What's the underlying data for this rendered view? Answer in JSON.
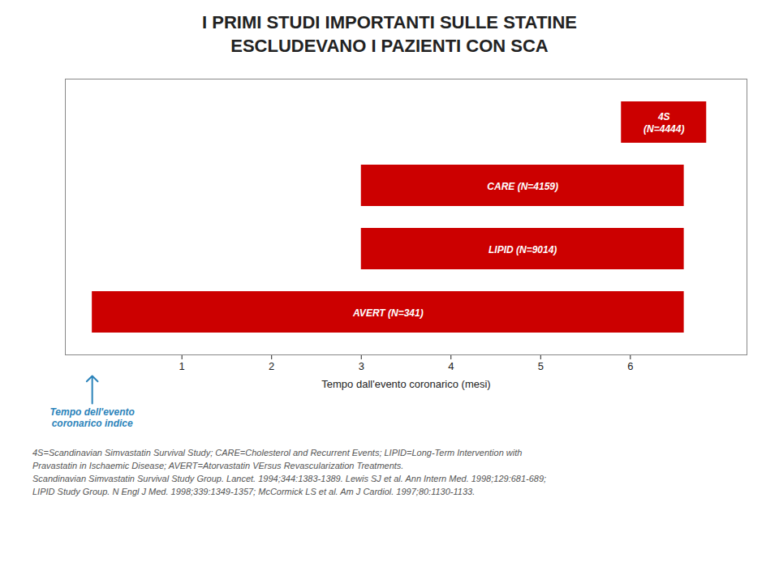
{
  "chart_data": {
    "type": "bar",
    "orientation": "horizontal",
    "title": "I PRIMI STUDI IMPORTANTI SULLE STATINE\nESCLUDEVANO I PAZIENTI CON SCA",
    "categories": [
      "4S\n(N=4444)",
      "CARE (N=4159)",
      "LIPID (N=9014)",
      "AVERT (N=341)"
    ],
    "starts": [
      5.9,
      3.0,
      3.0,
      0.0
    ],
    "values": [
      6.85,
      6.6,
      6.6,
      6.6
    ],
    "color": "#cc0000",
    "x_label": "Tempo dall'evento coronarico (mesi)",
    "xlim": [
      -0.3,
      7.3
    ],
    "xticks": [
      1,
      2,
      3,
      4,
      5,
      6
    ],
    "tick_labels": "x",
    "grid": false,
    "annotations": [
      {
        "text": "Tempo dell'evento\ncoronarico indice",
        "x": 0
      }
    ],
    "footnotes": [
      "4S=Scandinavian Simvastatin Survival Study; CARE=Cholesterol and Recurrent Events; LIPID=Long-Term Intervention with",
      "Pravastatin in Ischaemic Disease; AVERT=Atorvastatin VErsus Revascularization Treatments.",
      "Scandinavian Simvastatin Survival Study Group. Lancet. 1994;344:1383-1389. Lewis SJ et al. Ann Intern Med. 1998;129:681-689;",
      "LIPID Study Group. N Engl J Med. 1998;339:1349-1357; McCormick LS et al. Am J Cardiol. 1997;80:1130-1133."
    ]
  }
}
